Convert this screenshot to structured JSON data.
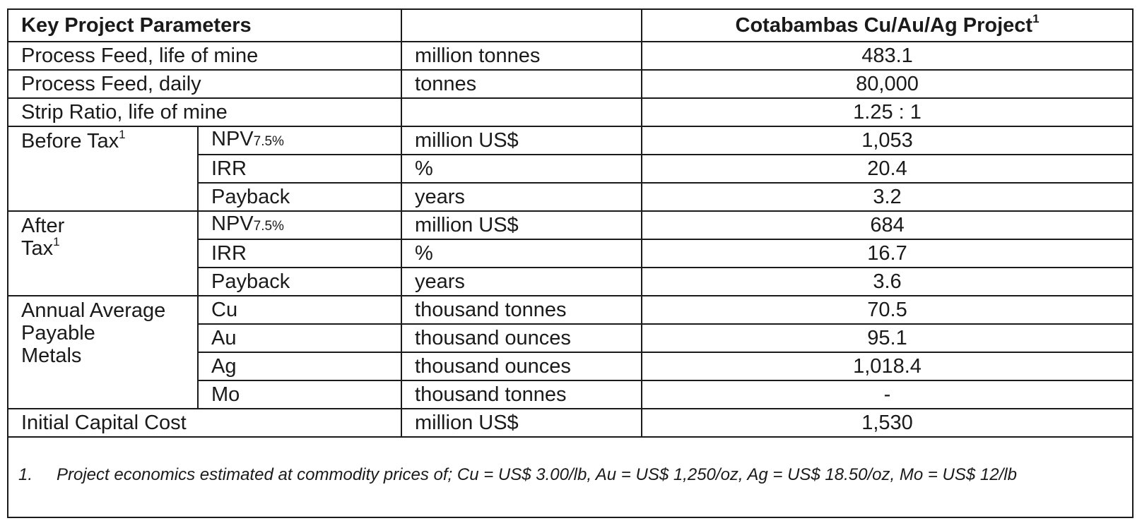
{
  "table": {
    "header": {
      "title": "Key Project Parameters",
      "project": "Cotabambas Cu/Au/Ag Project",
      "project_note": "1"
    },
    "rows": [
      {
        "label": "Process Feed, life of mine",
        "unit": "million tonnes",
        "value": "483.1"
      },
      {
        "label": "Process Feed, daily",
        "unit": "tonnes",
        "value": "80,000"
      },
      {
        "label": "Strip Ratio, life of mine",
        "unit": "",
        "value": "1.25 : 1"
      }
    ],
    "before_tax": {
      "label": "Before Tax",
      "note": "1",
      "npv": {
        "name": "NPV",
        "sub": "7.5%",
        "unit": "million US$",
        "value": "1,053"
      },
      "irr": {
        "name": "IRR",
        "unit": "%",
        "value": "20.4"
      },
      "payback": {
        "name": "Payback",
        "unit": "years",
        "value": "3.2"
      }
    },
    "after_tax": {
      "label_line1": "After",
      "label_line2": "Tax",
      "note": "1",
      "npv": {
        "name": "NPV",
        "sub": "7.5%",
        "unit": "million US$",
        "value": "684"
      },
      "irr": {
        "name": "IRR",
        "unit": "%",
        "value": "16.7"
      },
      "payback": {
        "name": "Payback",
        "unit": "years",
        "value": "3.6"
      }
    },
    "metals": {
      "label_line1": "Annual Average",
      "label_line2": "Payable",
      "label_line3": "Metals",
      "cu": {
        "name": "Cu",
        "unit": "thousand tonnes",
        "value": "70.5"
      },
      "au": {
        "name": "Au",
        "unit": "thousand ounces",
        "value": "95.1"
      },
      "ag": {
        "name": "Ag",
        "unit": "thousand ounces",
        "value": "1,018.4"
      },
      "mo": {
        "name": "Mo",
        "unit": "thousand tonnes",
        "value": "-"
      }
    },
    "capital": {
      "label": "Initial Capital Cost",
      "unit": "million US$",
      "value": "1,530"
    }
  },
  "footnote": {
    "number": "1.",
    "text": "Project economics estimated at commodity prices of; Cu = US$ 3.00/lb, Au = US$ 1,250/oz, Ag = US$ 18.50/oz, Mo = US$ 12/lb"
  }
}
